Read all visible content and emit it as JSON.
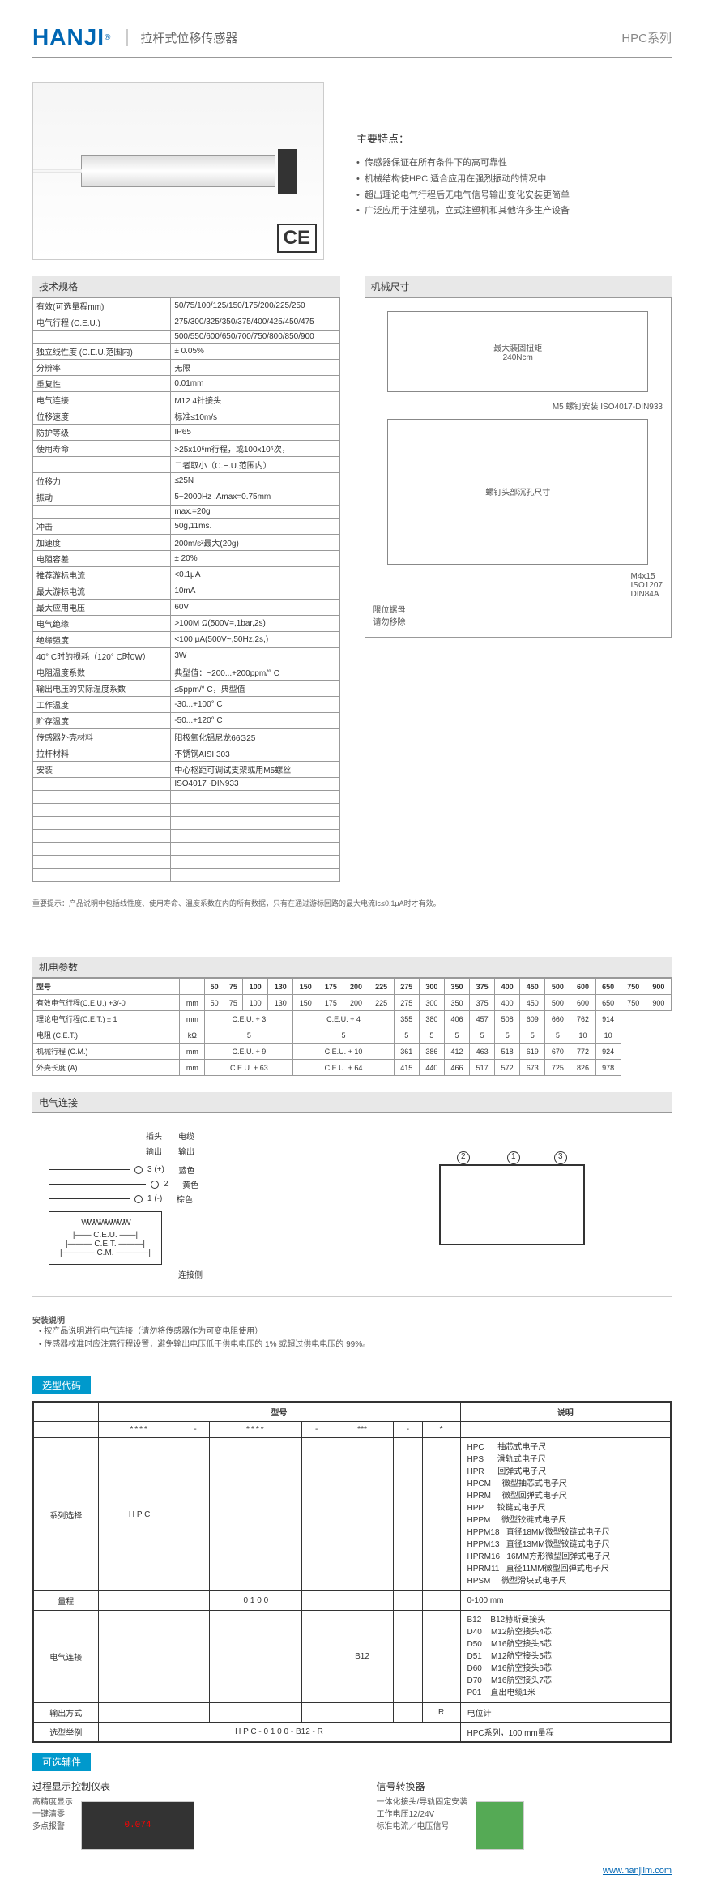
{
  "header": {
    "logo": "HANJI",
    "title": "拉杆式位移传感器",
    "series": "HPC系列"
  },
  "ce_mark": "CE",
  "features": {
    "title": "主要特点：",
    "items": [
      "传感器保证在所有条件下的高可靠性",
      "机械结构使HPC 适合应用在强烈振动的情况中",
      "超出理论电气行程后无电气信号输出变化安装更简单",
      "广泛应用于注塑机，立式注塑机和其他许多生产设备"
    ]
  },
  "spec_title": "技术规格",
  "mech_title": "机械尺寸",
  "specs": [
    [
      "有效(可选量程mm)",
      "50/75/100/125/150/175/200/225/250"
    ],
    [
      "电气行程 (C.E.U.)",
      "275/300/325/350/375/400/425/450/475"
    ],
    [
      "",
      "500/550/600/650/700/750/800/850/900"
    ],
    [
      "独立线性度 (C.E.U.范围内)",
      "± 0.05%"
    ],
    [
      "分辨率",
      "无限"
    ],
    [
      "重复性",
      "0.01mm"
    ],
    [
      "电气连接",
      "M12  4针接头"
    ],
    [
      "位移速度",
      "标准≤10m/s"
    ],
    [
      "防护等级",
      "IP65"
    ],
    [
      "使用寿命",
      ">25x10⁶m行程，或100x10⁶次，"
    ],
    [
      "",
      "二者取小（C.E.U.范围内）"
    ],
    [
      "位移力",
      "≤25N"
    ],
    [
      "振动",
      "5~2000Hz ,Amax=0.75mm"
    ],
    [
      "",
      "max.=20g"
    ],
    [
      "冲击",
      "50g,11ms."
    ],
    [
      "加速度",
      "200m/s²最大(20g)"
    ],
    [
      "电阻容差",
      "± 20%"
    ],
    [
      "推荐游标电流",
      "<0.1μA"
    ],
    [
      "最大游标电流",
      "10mA"
    ],
    [
      "最大应用电压",
      "60V"
    ],
    [
      "电气绝缘",
      ">100M Ω(500V=,1bar,2s)"
    ],
    [
      "绝缘强度",
      "<100 μA(500V~,50Hz,2s,)"
    ],
    [
      "40° C时的损耗（120° C时0W）",
      "3W"
    ],
    [
      "电阻温度系数",
      "典型值：~200...+200ppm/° C"
    ],
    [
      "输出电压的实际温度系数",
      "≤5ppm/° C，典型值"
    ],
    [
      "工作温度",
      "-30...+100° C"
    ],
    [
      "贮存温度",
      "-50...+120° C"
    ],
    [
      "传感器外壳材料",
      "阳极氧化铝尼龙66G25"
    ],
    [
      "拉杆材料",
      "不锈钢AISI 303"
    ],
    [
      "安装",
      "中心枢距可调试支架或用M5螺丝"
    ],
    [
      "",
      "ISO4017~DIN933"
    ],
    [
      "",
      ""
    ],
    [
      "",
      ""
    ],
    [
      "",
      ""
    ],
    [
      "",
      ""
    ],
    [
      "",
      ""
    ],
    [
      "",
      ""
    ],
    [
      "",
      ""
    ]
  ],
  "mech_labels": {
    "torque": "最大装固扭矩\n240Ncm",
    "screw": "M5 螺钉安装 ISO4017-DIN933",
    "screw_head": "螺钉头部沉孔尺寸",
    "m4": "M4x15\nISO1207\nDIN84A",
    "limit": "限位螺母\n请勿移除"
  },
  "note1": "重要提示：产品说明中包括线性度、使用寿命、温度系数在内的所有数据，只有在通过游标回路的最大电流Ic≤0.1μA时才有效。",
  "param_title": "机电参数",
  "param_headers": [
    "型号",
    "",
    "50",
    "75",
    "100",
    "130",
    "150",
    "175",
    "200",
    "225",
    "275",
    "300",
    "350",
    "375",
    "400",
    "450",
    "500",
    "600",
    "650",
    "750",
    "900"
  ],
  "param_rows": [
    [
      "有效电气行程(C.E.U.) +3/-0",
      "mm",
      "50",
      "75",
      "100",
      "130",
      "150",
      "175",
      "200",
      "225",
      "275",
      "300",
      "350",
      "375",
      "400",
      "450",
      "500",
      "600",
      "650",
      "750",
      "900"
    ],
    [
      "理论电气行程(C.E.T.) ± 1",
      "mm",
      {
        "span": 4,
        "val": "C.E.U. + 3"
      },
      {
        "span": 4,
        "val": "C.E.U. + 4"
      },
      "355",
      "380",
      "406",
      "457",
      "508",
      "609",
      "660",
      "762",
      "914"
    ],
    [
      "电阻 (C.E.T.)",
      "kΩ",
      {
        "span": 4,
        "val": "5"
      },
      {
        "span": 4,
        "val": "5"
      },
      "5",
      "5",
      "5",
      "5",
      "5",
      "5",
      "5",
      "10",
      "10"
    ],
    [
      "机械行程 (C.M.)",
      "mm",
      {
        "span": 4,
        "val": "C.E.U. + 9"
      },
      {
        "span": 4,
        "val": "C.E.U. + 10"
      },
      "361",
      "386",
      "412",
      "463",
      "518",
      "619",
      "670",
      "772",
      "924"
    ],
    [
      "外壳长度 (A)",
      "mm",
      {
        "span": 4,
        "val": "C.E.U. + 63"
      },
      {
        "span": 4,
        "val": "C.E.U. + 64"
      },
      "415",
      "440",
      "466",
      "517",
      "572",
      "673",
      "725",
      "826",
      "978"
    ]
  ],
  "elec_title": "电气连接",
  "elec_labels": {
    "plug": "插头",
    "cable": "电缆",
    "output": "输出",
    "pin3": "3 (+)",
    "blue": "蓝色",
    "pin2": "2",
    "yellow": "黄色",
    "pin1": "1 (-)",
    "brown": "棕色",
    "ceu": "C.E.U.",
    "cet": "C.E.T.",
    "cm": "C.M.",
    "conn_side": "连接侧",
    "n2": "2",
    "n3": "3",
    "n1": "1"
  },
  "install": {
    "title": "安装说明",
    "items": [
      "按产品说明进行电气连接（请勿将传感器作为可变电阻使用）",
      "传感器校准时应注意行程设置，避免输出电压低于供电电压的 1% 或超过供电电压的 99%。"
    ]
  },
  "selection_tag": "选型代码",
  "selection": {
    "hdr_model": "型号",
    "hdr_desc": "说明",
    "row_series": "系列选择",
    "series_val": "H P C",
    "series_list": [
      "HPC      抽芯式电子尺",
      "HPS      滑轨式电子尺",
      "HPR      回弹式电子尺",
      "HPCM     微型抽芯式电子尺",
      "HPRM     微型回弹式电子尺",
      "HPP      铰链式电子尺",
      "HPPM     微型铰链式电子尺",
      "HPPM18   直径18MM微型铰链式电子尺",
      "HPPM13   直径13MM微型铰链式电子尺",
      "HPRM16   16MM方形微型回弹式电子尺",
      "HPRM11   直径11MM微型回弹式电子尺",
      "HPSM     微型滑块式电子尺"
    ],
    "row_range": "量程",
    "range_val": "0 1 0 0",
    "range_desc": "0-100 mm",
    "row_conn": "电气连接",
    "conn_val": "B12",
    "conn_list": [
      "B12    B12赫斯曼接头",
      "D40    M12航空接头4芯",
      "D50    M16航空接头5芯",
      "D51    M12航空接头5芯",
      "D60    M16航空接头6芯",
      "D70    M16航空接头7芯",
      "P01    直出电缆1米"
    ],
    "row_output": "输出方式",
    "output_val": "R",
    "output_desc": "电位计",
    "row_example": "选型举例",
    "example_val": "H P C - 0 1 0 0 - B12 - R",
    "example_desc": "HPC系列，100 mm量程"
  },
  "acc_tag": "可选辅件",
  "acc1": {
    "title": "过程显示控制仪表",
    "items": [
      "高精度显示",
      "一键清零",
      "多点报警"
    ]
  },
  "acc2": {
    "title": "信号转换器",
    "items": [
      "一体化接头/导轨固定安装",
      "工作电压12/24V",
      "标准电流／电压信号"
    ]
  },
  "footer_url": "www.hanjiim.com",
  "stars4": "****",
  "dash": "-"
}
